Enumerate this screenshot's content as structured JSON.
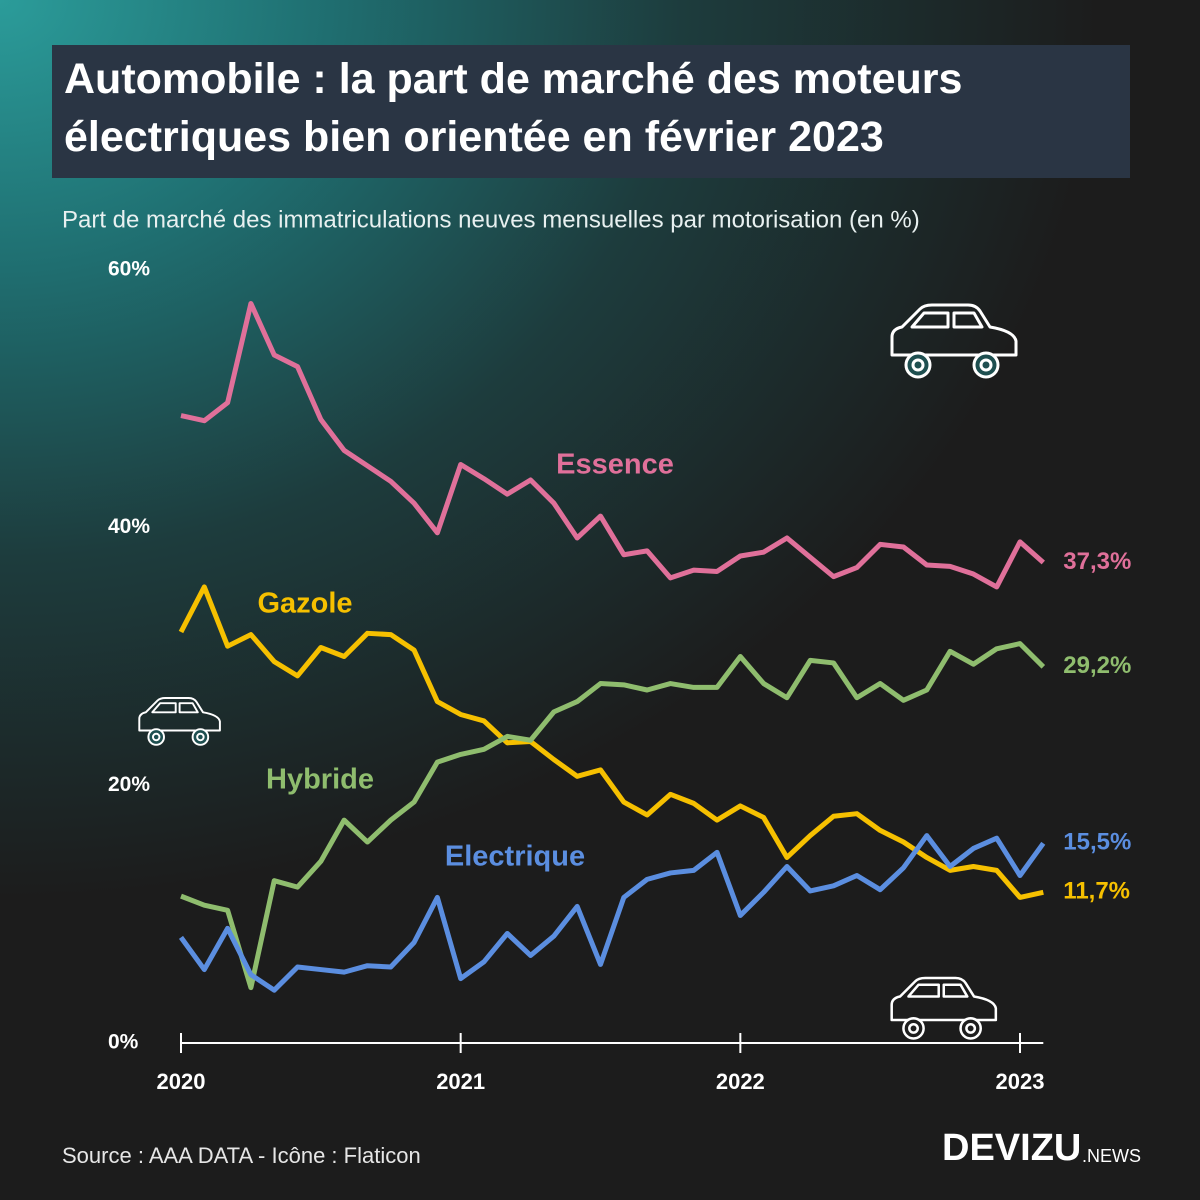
{
  "chart_data": {
    "type": "line",
    "title": "Automobile : la part de marché des moteurs électriques bien orientée en février 2023",
    "subtitle": "Part de marché des immatriculations neuves mensuelles par motorisation (en %)",
    "source": "Source : AAA DATA - Icône : Flaticon",
    "brand": "DEVIZU",
    "brand_suffix": ".NEWS",
    "categories": [
      "2020",
      null,
      null,
      null,
      null,
      null,
      null,
      null,
      null,
      null,
      null,
      null,
      "2021",
      null,
      null,
      null,
      null,
      null,
      null,
      null,
      null,
      null,
      null,
      null,
      "2022",
      null,
      null,
      null,
      null,
      null,
      null,
      null,
      null,
      null,
      null,
      null,
      "2023",
      null
    ],
    "ylim": [
      0,
      60
    ],
    "yticks": [
      {
        "value": 0,
        "label": "0%"
      },
      {
        "value": 20,
        "label": "20%"
      },
      {
        "value": 40,
        "label": "40%"
      },
      {
        "value": 60,
        "label": "60%"
      }
    ],
    "series": [
      {
        "name": "Essence",
        "color": "#e0709a",
        "values": [
          48.7,
          48.3,
          49.7,
          57.4,
          53.4,
          52.5,
          48.4,
          46.0,
          44.8,
          43.6,
          41.9,
          39.6,
          44.9,
          43.8,
          42.6,
          43.7,
          41.9,
          39.2,
          40.9,
          37.9,
          38.2,
          36.1,
          36.7,
          36.6,
          37.8,
          38.1,
          39.2,
          37.7,
          36.2,
          36.9,
          38.7,
          38.5,
          37.1,
          37.0,
          36.4,
          35.4,
          38.9,
          37.3
        ],
        "value_labels": [
          null,
          null,
          null,
          null,
          null,
          null,
          null,
          null,
          null,
          null,
          null,
          null,
          null,
          null,
          null,
          null,
          null,
          null,
          null,
          null,
          null,
          null,
          null,
          null,
          null,
          null,
          null,
          null,
          null,
          null,
          null,
          null,
          null,
          null,
          null,
          null,
          null,
          "37,3%"
        ]
      },
      {
        "name": "Gazole",
        "color": "#f6c000",
        "values": [
          31.9,
          35.4,
          30.8,
          31.7,
          29.6,
          28.5,
          30.7,
          30.0,
          31.8,
          31.7,
          30.5,
          26.5,
          25.5,
          25.0,
          23.3,
          23.4,
          22.0,
          20.7,
          21.2,
          18.7,
          17.7,
          19.3,
          18.6,
          17.3,
          18.4,
          17.5,
          14.4,
          16.1,
          17.6,
          17.8,
          16.5,
          15.6,
          14.4,
          13.4,
          13.7,
          13.4,
          11.3,
          11.7
        ],
        "value_labels": [
          null,
          null,
          null,
          null,
          null,
          null,
          null,
          null,
          null,
          null,
          null,
          null,
          null,
          null,
          null,
          null,
          null,
          null,
          null,
          null,
          null,
          null,
          null,
          null,
          null,
          null,
          null,
          null,
          null,
          null,
          null,
          null,
          null,
          null,
          null,
          null,
          null,
          "11,7%"
        ]
      },
      {
        "name": "Hybride",
        "color": "#8fbd6e",
        "values": [
          11.4,
          10.7,
          10.3,
          4.3,
          12.6,
          12.1,
          14.1,
          17.3,
          15.6,
          17.3,
          18.7,
          21.8,
          22.4,
          22.8,
          23.8,
          23.5,
          25.7,
          26.5,
          27.9,
          27.8,
          27.4,
          27.9,
          27.6,
          27.6,
          30.0,
          27.9,
          26.8,
          29.7,
          29.5,
          26.8,
          27.9,
          26.6,
          27.4,
          30.4,
          29.4,
          30.6,
          31.0,
          29.2
        ],
        "value_labels": [
          null,
          null,
          null,
          null,
          null,
          null,
          null,
          null,
          null,
          null,
          null,
          null,
          null,
          null,
          null,
          null,
          null,
          null,
          null,
          null,
          null,
          null,
          null,
          null,
          null,
          null,
          null,
          null,
          null,
          null,
          null,
          null,
          null,
          null,
          null,
          null,
          null,
          "29,2%"
        ]
      },
      {
        "name": "Electrique",
        "color": "#5b8ee0",
        "values": [
          8.2,
          5.7,
          8.9,
          5.3,
          4.1,
          5.9,
          5.7,
          5.5,
          6.0,
          5.9,
          7.8,
          11.3,
          5.0,
          6.3,
          8.5,
          6.8,
          8.3,
          10.6,
          6.1,
          11.3,
          12.7,
          13.2,
          13.4,
          14.8,
          9.9,
          11.7,
          13.7,
          11.8,
          12.2,
          13.0,
          11.9,
          13.6,
          16.1,
          13.7,
          15.1,
          15.9,
          13.0,
          15.5
        ],
        "value_labels": [
          null,
          null,
          null,
          null,
          null,
          null,
          null,
          null,
          null,
          null,
          null,
          null,
          null,
          null,
          null,
          null,
          null,
          null,
          null,
          null,
          null,
          null,
          null,
          null,
          null,
          null,
          null,
          null,
          null,
          null,
          null,
          null,
          null,
          null,
          null,
          null,
          null,
          "15,5%"
        ]
      }
    ]
  }
}
